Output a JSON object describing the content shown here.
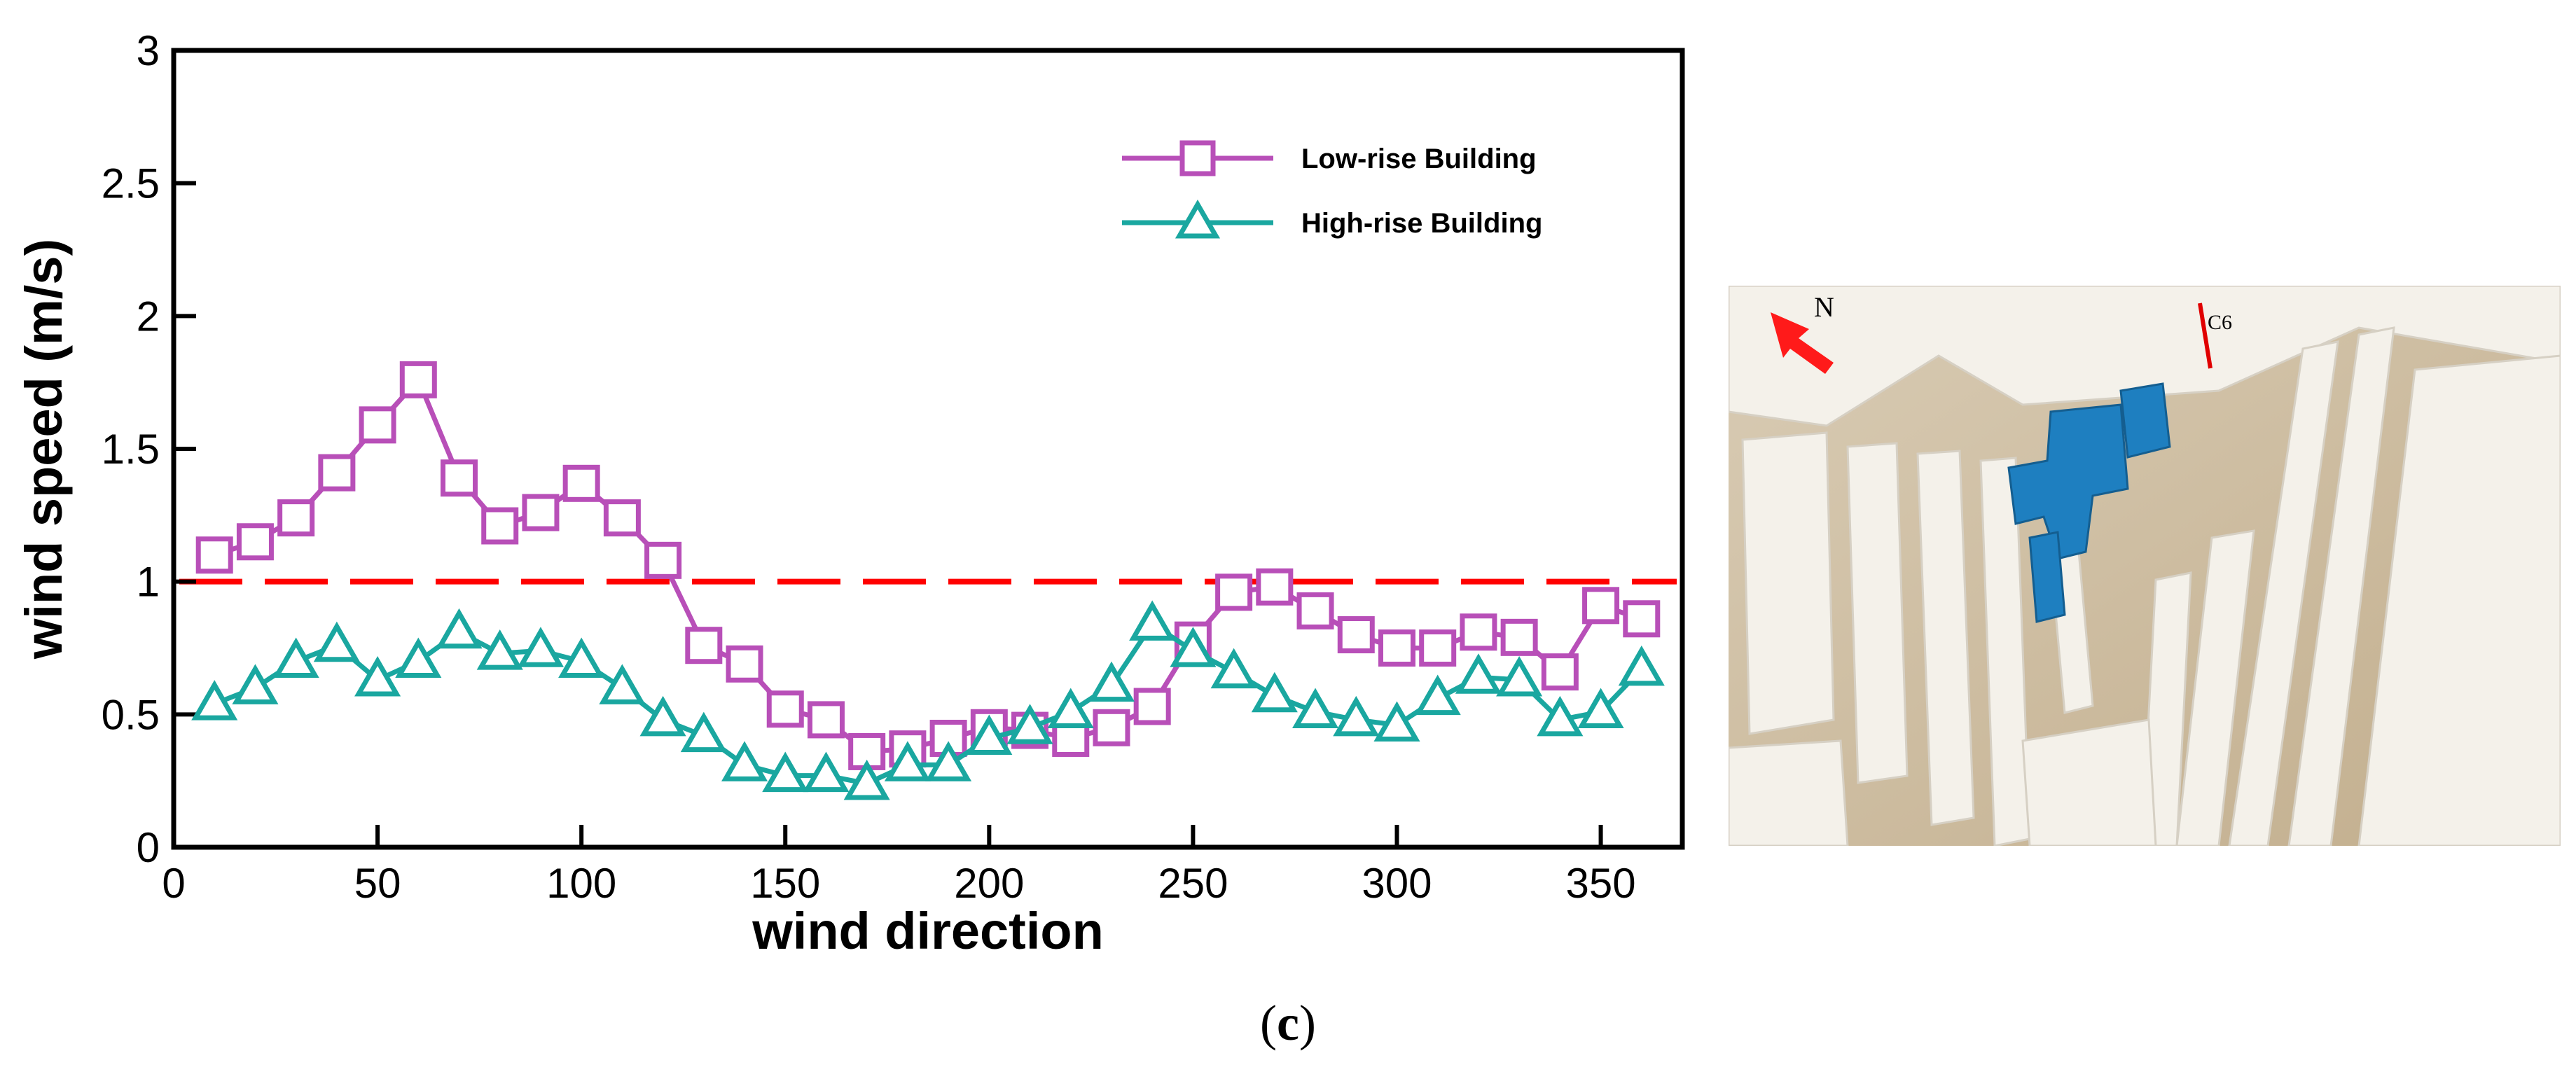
{
  "chart_data": {
    "type": "line",
    "xlabel": "wind direction",
    "ylabel": "wind speed (m/s)",
    "xlim": [
      0,
      370
    ],
    "ylim": [
      0,
      3
    ],
    "x_ticks": [
      0,
      50,
      100,
      150,
      200,
      250,
      300,
      350
    ],
    "y_ticks": [
      0,
      0.5,
      1,
      1.5,
      2,
      2.5,
      3
    ],
    "x_tick_labels": [
      "0",
      "50",
      "100",
      "150",
      "200",
      "250",
      "300",
      "350"
    ],
    "y_tick_labels": [
      "0",
      "0.5",
      "1",
      "1.5",
      "2",
      "2.5",
      "3"
    ],
    "grid": false,
    "legend_position": "top-right",
    "x": [
      10,
      20,
      30,
      40,
      50,
      60,
      70,
      80,
      90,
      100,
      110,
      120,
      130,
      140,
      150,
      160,
      170,
      180,
      190,
      200,
      210,
      220,
      230,
      240,
      250,
      260,
      270,
      280,
      290,
      300,
      310,
      320,
      330,
      340,
      350,
      360
    ],
    "series": [
      {
        "name": "Low-rise Building",
        "color": "#b84fb8",
        "marker": "square",
        "values": [
          1.1,
          1.15,
          1.24,
          1.41,
          1.59,
          1.76,
          1.39,
          1.21,
          1.26,
          1.37,
          1.24,
          1.08,
          0.76,
          0.69,
          0.52,
          0.48,
          0.36,
          0.37,
          0.41,
          0.45,
          0.44,
          0.41,
          0.45,
          0.53,
          0.78,
          0.96,
          0.98,
          0.89,
          0.8,
          0.75,
          0.75,
          0.81,
          0.79,
          0.66,
          0.91,
          0.86
        ]
      },
      {
        "name": "High-rise Building",
        "color": "#1aa7a0",
        "marker": "triangle",
        "values": [
          0.54,
          0.6,
          0.7,
          0.76,
          0.63,
          0.7,
          0.81,
          0.73,
          0.74,
          0.7,
          0.6,
          0.48,
          0.42,
          0.31,
          0.27,
          0.27,
          0.24,
          0.31,
          0.31,
          0.41,
          0.45,
          0.51,
          0.61,
          0.84,
          0.74,
          0.66,
          0.57,
          0.51,
          0.48,
          0.46,
          0.56,
          0.64,
          0.63,
          0.48,
          0.51,
          0.67
        ]
      }
    ],
    "reference_line": {
      "y": 1,
      "color": "#ff0000",
      "style": "dashed"
    }
  },
  "photo": {
    "labels": {
      "north": "N",
      "point": "C6"
    },
    "colors": {
      "ground": "#c9b79a",
      "buildings": "#f4f1ea",
      "target": "#1e7fc0",
      "arrow": "#ff1a1a"
    }
  },
  "caption": {
    "open": "(",
    "letter": "c",
    "close": ")"
  }
}
